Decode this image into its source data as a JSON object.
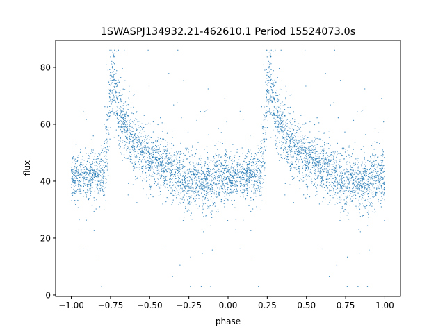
{
  "chart_data": {
    "type": "scatter",
    "title": "1SWASPJ134932.21-462610.1 Period 15524073.0s",
    "xlabel": "phase",
    "ylabel": "flux",
    "xlim": [
      -1.1,
      1.1
    ],
    "ylim": [
      -0.5,
      89.5
    ],
    "xticks": [
      -1.0,
      -0.75,
      -0.5,
      -0.25,
      0.0,
      0.25,
      0.5,
      0.75,
      1.0
    ],
    "xtick_labels": [
      "−1.00",
      "−0.75",
      "−0.50",
      "−0.25",
      "0.00",
      "0.25",
      "0.50",
      "0.75",
      "1.00"
    ],
    "yticks": [
      0,
      20,
      40,
      60,
      80
    ],
    "ytick_labels": [
      "0",
      "20",
      "40",
      "60",
      "80"
    ],
    "grid": false,
    "legend": "none",
    "marker_color": "#1f77b4",
    "marker": "small dots",
    "phase_range": [
      -1.0,
      1.0
    ],
    "repeats_every_phase": 1.0,
    "profile": {
      "phase": [
        0.0,
        0.05,
        0.1,
        0.15,
        0.2,
        0.22,
        0.25,
        0.27,
        0.3,
        0.35,
        0.4,
        0.45,
        0.5,
        0.55,
        0.6,
        0.65,
        0.7,
        0.75,
        0.8,
        0.85,
        0.9,
        0.95,
        1.0
      ],
      "median_flux": [
        41,
        41,
        42,
        42,
        43,
        48,
        72,
        75,
        65,
        58,
        54,
        51,
        48,
        46,
        45,
        43,
        41,
        40,
        40,
        39,
        40,
        41,
        41
      ],
      "spread": [
        4,
        4,
        4,
        4,
        5,
        6,
        7,
        7,
        6,
        5,
        5,
        5,
        5,
        5,
        5,
        5,
        5,
        5,
        5,
        5,
        5,
        5,
        4
      ]
    },
    "flux_range_observed": [
      3,
      86
    ]
  }
}
